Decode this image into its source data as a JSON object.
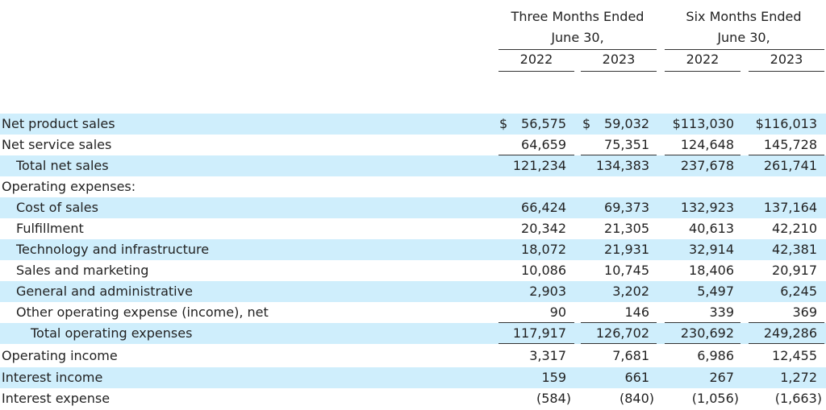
{
  "header": {
    "group1": {
      "line1": "Three Months Ended",
      "line2": "June 30,",
      "years": [
        "2022",
        "2023"
      ]
    },
    "group2": {
      "line1": "Six Months Ended",
      "line2": "June 30,",
      "years": [
        "2022",
        "2023"
      ]
    }
  },
  "rows": [
    {
      "label": "Net product sales",
      "values": [
        "56,575",
        "59,032",
        "$113,030",
        "$116,013"
      ],
      "currency": [
        "$",
        "$"
      ]
    },
    {
      "label": "Net service sales",
      "values": [
        "64,659",
        "75,351",
        "124,648",
        "145,728"
      ]
    },
    {
      "label": "Total net sales",
      "values": [
        "121,234",
        "134,383",
        "237,678",
        "261,741"
      ]
    },
    {
      "label": "Operating expenses:",
      "values": [
        "",
        "",
        "",
        ""
      ]
    },
    {
      "label": "Cost of sales",
      "values": [
        "66,424",
        "69,373",
        "132,923",
        "137,164"
      ]
    },
    {
      "label": "Fulfillment",
      "values": [
        "20,342",
        "21,305",
        "40,613",
        "42,210"
      ]
    },
    {
      "label": "Technology and infrastructure",
      "values": [
        "18,072",
        "21,931",
        "32,914",
        "42,381"
      ]
    },
    {
      "label": "Sales and marketing",
      "values": [
        "10,086",
        "10,745",
        "18,406",
        "20,917"
      ]
    },
    {
      "label": "General and administrative",
      "values": [
        "2,903",
        "3,202",
        "5,497",
        "6,245"
      ]
    },
    {
      "label": "Other operating expense (income), net",
      "values": [
        "90",
        "146",
        "339",
        "369"
      ]
    },
    {
      "label": "Total operating expenses",
      "values": [
        "117,917",
        "126,702",
        "230,692",
        "249,286"
      ]
    },
    {
      "label": "Operating income",
      "values": [
        "3,317",
        "7,681",
        "6,986",
        "12,455"
      ]
    },
    {
      "label": "Interest income",
      "values": [
        "159",
        "661",
        "267",
        "1,272"
      ]
    },
    {
      "label": "Interest expense",
      "values": [
        "(584)",
        "(840)",
        "(1,056)",
        "(1,663)"
      ]
    }
  ]
}
